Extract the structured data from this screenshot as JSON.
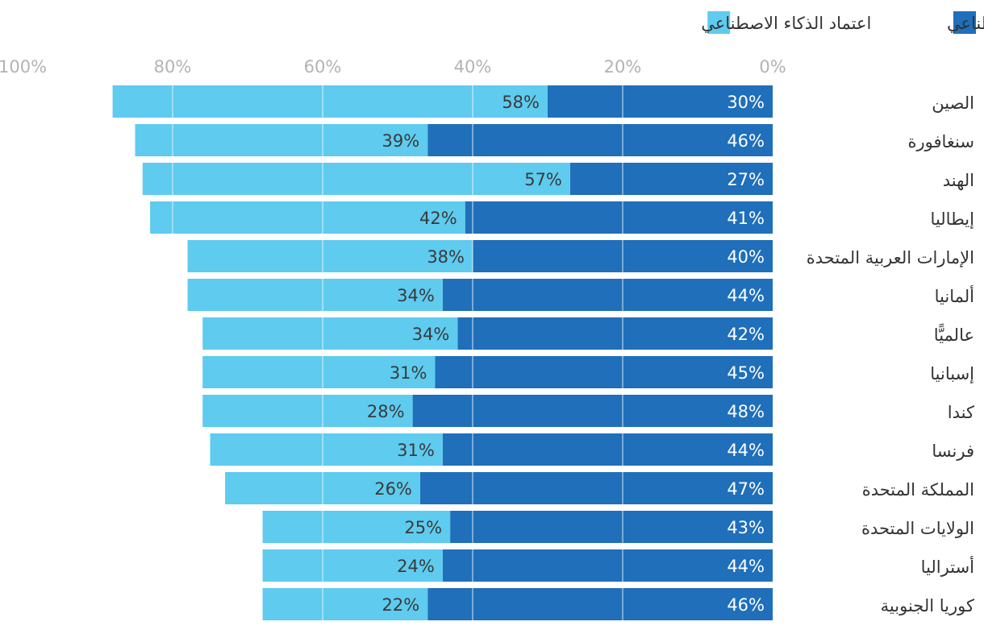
{
  "colors": {
    "exploration": "#1f6fba",
    "adoption": "#5ecbef",
    "grid": "#ffffff"
  },
  "chart_data": {
    "type": "bar",
    "orientation": "horizontal-stacked",
    "direction": "right-to-left",
    "xlim": [
      0,
      100
    ],
    "x_ticks": [
      "0%",
      "20%",
      "40%",
      "60%",
      "80%",
      "100%"
    ],
    "legend_position": "top-right",
    "categories": [
      "الصين",
      "سنغافورة",
      "الهند",
      "إيطاليا",
      "الإمارات العربية المتحدة",
      "ألمانيا",
      "عالميًّا",
      "إسبانيا",
      "كندا",
      "فرنسا",
      "المملكة المتحدة",
      "الولايات المتحدة",
      "أستراليا",
      "كوريا الجنوبية"
    ],
    "series": [
      {
        "name": "استكشاف الذكاء الاصطناعي",
        "values": [
          30,
          46,
          27,
          41,
          40,
          44,
          42,
          45,
          48,
          44,
          47,
          43,
          44,
          46
        ],
        "labels": [
          "30%",
          "46%",
          "27%",
          "41%",
          "40%",
          "44%",
          "42%",
          "45%",
          "48%",
          "44%",
          "47%",
          "43%",
          "44%",
          "46%"
        ]
      },
      {
        "name": "اعتماد الذكاء الاصطناعي",
        "values": [
          58,
          39,
          57,
          42,
          38,
          34,
          34,
          31,
          28,
          31,
          26,
          25,
          24,
          22
        ],
        "labels": [
          "58%",
          "39%",
          "57%",
          "42%",
          "38%",
          "34%",
          "34%",
          "31%",
          "28%",
          "31%",
          "26%",
          "25%",
          "24%",
          "22%"
        ]
      }
    ]
  }
}
